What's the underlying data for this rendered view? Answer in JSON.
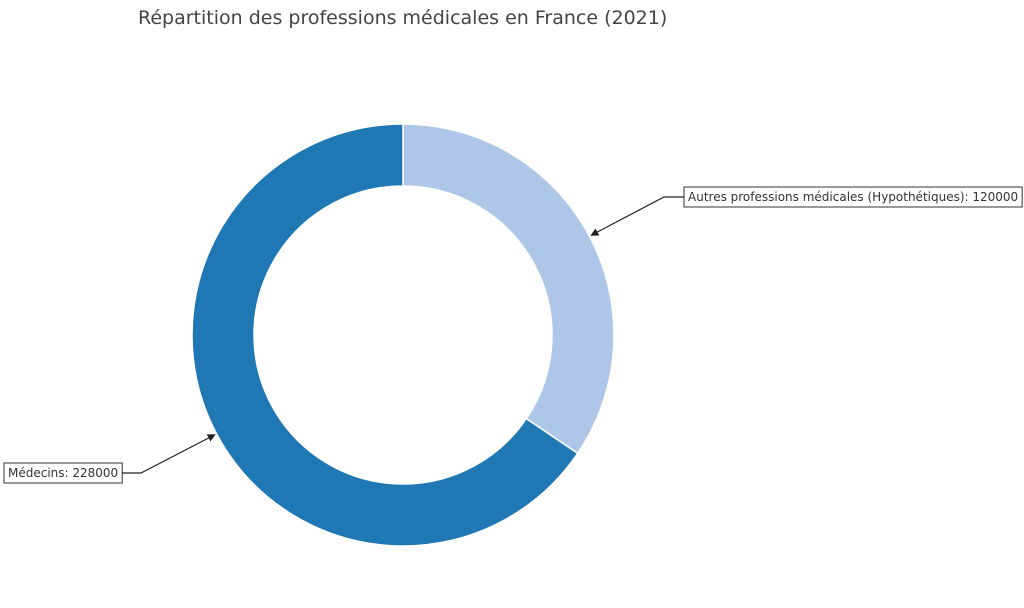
{
  "chart_data": {
    "type": "pie",
    "variant": "donut",
    "title": "Répartition des professions médicales en France (2021)",
    "slices": [
      {
        "label": "Autres professions médicales (Hypothétiques)",
        "value": 120000,
        "color": "#aec7e8",
        "annotation": "Autres professions médicales (Hypothétiques): 120000"
      },
      {
        "label": "Médecins",
        "value": 228000,
        "color": "#1f77b4",
        "annotation": "Médecins: 228000"
      }
    ],
    "start_angle": "top",
    "direction": "clockwise",
    "legend": "none"
  }
}
